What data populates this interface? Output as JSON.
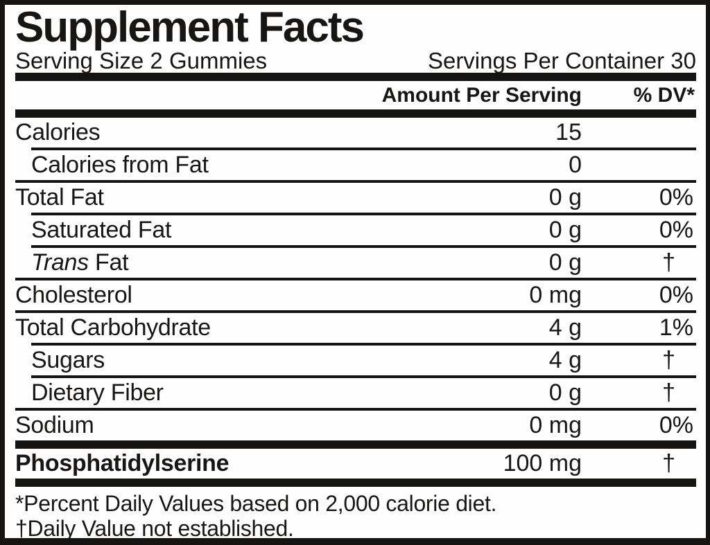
{
  "title": "Supplement Facts",
  "serving": {
    "size": "Serving Size 2 Gummies",
    "per_container": "Servings Per Container 30"
  },
  "header": {
    "amount_label": "Amount Per Serving",
    "dv_label": "% DV*"
  },
  "rows": [
    {
      "name": "Calories",
      "amount": "15",
      "dv": ""
    },
    {
      "name": "Calories from Fat",
      "amount": "0",
      "dv": ""
    },
    {
      "name": "Total Fat",
      "amount": "0 g",
      "dv": "0%"
    },
    {
      "name": "Saturated Fat",
      "amount": "0 g",
      "dv": "0%"
    },
    {
      "name_italic": "Trans",
      "name_rest": " Fat",
      "amount": "0 g",
      "dv": "†"
    },
    {
      "name": "Cholesterol",
      "amount": "0 mg",
      "dv": "0%"
    },
    {
      "name": "Total Carbohydrate",
      "amount": "4 g",
      "dv": "1%"
    },
    {
      "name": "Sugars",
      "amount": "4 g",
      "dv": "†"
    },
    {
      "name": "Dietary Fiber",
      "amount": "0 g",
      "dv": "†"
    },
    {
      "name": "Sodium",
      "amount": "0 mg",
      "dv": "0%"
    },
    {
      "name": "Phosphatidylserine",
      "amount": "100 mg",
      "dv": "†"
    }
  ],
  "footnotes": [
    "*Percent Daily Values based on 2,000 calorie diet.",
    "†Daily Value not established."
  ],
  "colors": {
    "ink": "#151413",
    "background": "#fefefe"
  }
}
